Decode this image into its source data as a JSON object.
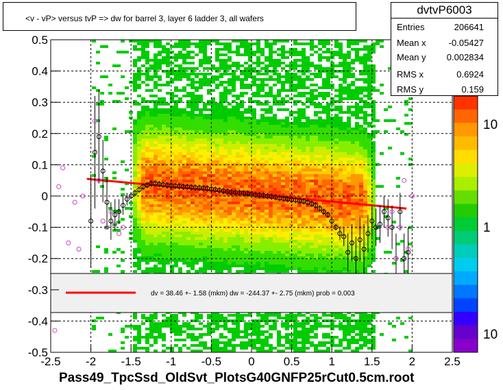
{
  "title": "<v - vP>       versus  tvP =>  dw for barrel 3, layer 6 ladder 3, all wafers",
  "x_axis_title": "Pass49_TpcSsd_OldSvt_PlotsG40GNFP25rCut0.5cm.root",
  "stats": {
    "name": "dvtvP6003",
    "rows": [
      {
        "label": "Entries",
        "value": "206641"
      },
      {
        "label": "Mean x",
        "value": "-0.05427"
      },
      {
        "label": "Mean y",
        "value": "0.002834"
      },
      {
        "label": "RMS x",
        "value": "0.6924"
      },
      {
        "label": "RMS y",
        "value": "0.159"
      }
    ]
  },
  "fit_legend": "dv =   38.46 +-  1.58 (mkm) dw = -244.37 +-  2.75 (mkm) prob = 0.003",
  "colors": {
    "fit_line": "#ff0000",
    "profile": "#000000",
    "outlier": "#cc44cc"
  },
  "chart_data": {
    "type": "heatmap",
    "xlim": [
      -2.5,
      2.5
    ],
    "ylim": [
      -0.5,
      0.5
    ],
    "x_ticks": [
      "-2.5",
      "-2",
      "-1.5",
      "-1",
      "-0.5",
      "0",
      "0.5",
      "1",
      "1.5",
      "2",
      "2.5"
    ],
    "x_tick_values": [
      -2.5,
      -2,
      -1.5,
      -1,
      -0.5,
      0,
      0.5,
      1,
      1.5,
      2,
      2.5
    ],
    "y_ticks": [
      "-0.5",
      "-0.4",
      "-0.3",
      "-0.2",
      "-0.1",
      "0",
      "0.1",
      "0.2",
      "0.3",
      "0.4",
      "0.5"
    ],
    "y_tick_values": [
      -0.5,
      -0.4,
      -0.3,
      -0.2,
      -0.1,
      0,
      0.1,
      0.2,
      0.3,
      0.4,
      0.5
    ],
    "grid": true,
    "z_scale": "log",
    "z_ticks": [
      "10",
      "1",
      "10"
    ],
    "density": {
      "x_range": [
        -1.5,
        1.5
      ],
      "y_center": 0.0,
      "y_sigma": 0.16
    },
    "fit_line": {
      "x": [
        -2.05,
        1.93
      ],
      "y": [
        0.055,
        -0.04
      ]
    },
    "profile": {
      "x": [
        -2.0,
        -1.95,
        -1.9,
        -1.85,
        -1.8,
        -1.75,
        -1.7,
        -1.65,
        -1.6,
        -1.55,
        -1.5,
        -1.45,
        -1.4,
        -1.35,
        -1.3,
        -1.25,
        -1.2,
        -1.15,
        -1.1,
        -1.05,
        -1.0,
        -0.95,
        -0.9,
        -0.85,
        -0.8,
        -0.75,
        -0.7,
        -0.65,
        -0.6,
        -0.55,
        -0.5,
        -0.45,
        -0.4,
        -0.35,
        -0.3,
        -0.25,
        -0.2,
        -0.15,
        -0.1,
        -0.05,
        0.0,
        0.05,
        0.1,
        0.15,
        0.2,
        0.25,
        0.3,
        0.35,
        0.4,
        0.45,
        0.5,
        0.55,
        0.6,
        0.65,
        0.7,
        0.75,
        0.8,
        0.85,
        0.9,
        0.95,
        1.0,
        1.05,
        1.1,
        1.15,
        1.2,
        1.25,
        1.3,
        1.35,
        1.4,
        1.45,
        1.5,
        1.55,
        1.6,
        1.65,
        1.7,
        1.75,
        1.8,
        1.85,
        1.9,
        1.95
      ],
      "y": [
        -0.08,
        0.14,
        0.19,
        0.08,
        -0.02,
        -0.08,
        -0.06,
        -0.05,
        -0.03,
        -0.01,
        0.0,
        0.01,
        0.02,
        0.03,
        0.035,
        0.04,
        0.04,
        0.038,
        0.036,
        0.034,
        0.033,
        0.032,
        0.031,
        0.03,
        0.029,
        0.028,
        0.027,
        0.026,
        0.025,
        0.024,
        0.022,
        0.02,
        0.018,
        0.016,
        0.014,
        0.012,
        0.011,
        0.01,
        0.009,
        0.008,
        0.006,
        0.004,
        0.003,
        0.002,
        0.0,
        -0.002,
        -0.004,
        -0.006,
        -0.008,
        -0.01,
        -0.012,
        -0.013,
        -0.015,
        -0.017,
        -0.02,
        -0.025,
        -0.03,
        -0.04,
        -0.05,
        -0.06,
        -0.08,
        -0.1,
        -0.12,
        -0.13,
        -0.18,
        -0.15,
        -0.2,
        -0.14,
        -0.17,
        -0.12,
        -0.08,
        -0.1,
        -0.09,
        -0.05,
        -0.07,
        -0.1,
        -0.2,
        -0.05,
        -0.2,
        -0.18
      ],
      "err": [
        0.15,
        0.18,
        0.15,
        0.1,
        0.08,
        0.06,
        0.05,
        0.04,
        0.03,
        0.02,
        0.01,
        0.01,
        0.01,
        0.01,
        0.01,
        0.01,
        0.01,
        0.01,
        0.01,
        0.01,
        0.01,
        0.01,
        0.01,
        0.01,
        0.01,
        0.01,
        0.01,
        0.01,
        0.01,
        0.01,
        0.01,
        0.01,
        0.01,
        0.01,
        0.01,
        0.01,
        0.01,
        0.01,
        0.01,
        0.01,
        0.01,
        0.01,
        0.01,
        0.01,
        0.01,
        0.01,
        0.01,
        0.01,
        0.01,
        0.01,
        0.01,
        0.01,
        0.01,
        0.01,
        0.01,
        0.01,
        0.01,
        0.01,
        0.01,
        0.01,
        0.01,
        0.01,
        0.02,
        0.03,
        0.06,
        0.06,
        0.07,
        0.07,
        0.08,
        0.06,
        0.05,
        0.06,
        0.06,
        0.05,
        0.06,
        0.07,
        0.08,
        0.06,
        0.08,
        0.08
      ]
    },
    "outliers": {
      "x": [
        -2.4,
        -2.35,
        -2.28,
        -2.2,
        -2.15,
        -2.1,
        -1.95,
        -1.9,
        -1.85,
        -1.8,
        -1.75,
        -1.7,
        -1.65,
        -1.6,
        -2.45,
        1.7,
        1.75,
        1.8,
        1.85,
        1.9,
        1.95,
        2.0
      ],
      "y": [
        0.03,
        0.09,
        -0.15,
        -0.02,
        -0.17,
        0.0,
        0.24,
        0.05,
        -0.08,
        -0.1,
        -0.05,
        -0.09,
        -0.12,
        -0.1,
        -0.43,
        -0.1,
        -0.05,
        -0.2,
        -0.1,
        0.05,
        -0.17,
        0.0
      ]
    }
  }
}
